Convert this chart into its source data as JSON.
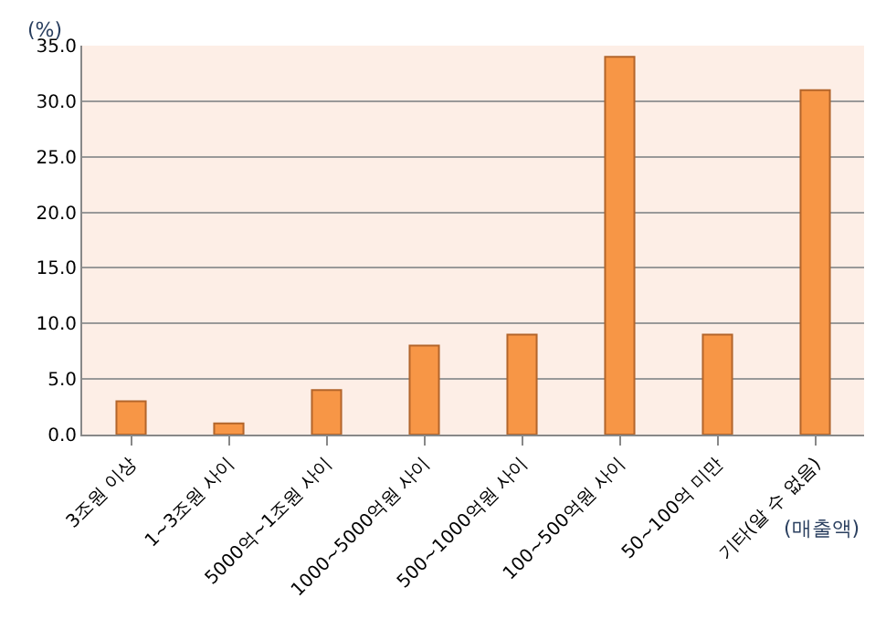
{
  "chart_data": {
    "type": "bar",
    "categories": [
      "3조원 이상",
      "1~3조원 사이",
      "5000억~1조원 사이",
      "1000~5000억원 사이",
      "500~1000억원 사이",
      "100~500억원 사이",
      "50~100억 미만",
      "기타(알 수 없음)"
    ],
    "values": [
      3.0,
      1.0,
      4.0,
      8.0,
      9.0,
      34.0,
      9.0,
      31.0
    ],
    "color": "#f79646",
    "ylabel": "(%)",
    "xlabel": "(매출액)",
    "ylim": [
      0,
      35
    ],
    "yticks": [
      {
        "value": 0,
        "label": "0.0"
      },
      {
        "value": 5,
        "label": "5.0"
      },
      {
        "value": 10,
        "label": "10.0"
      },
      {
        "value": 15,
        "label": "15.0"
      },
      {
        "value": 20,
        "label": "20.0"
      },
      {
        "value": 25,
        "label": "25.0"
      },
      {
        "value": 30,
        "label": "30.0"
      },
      {
        "value": 35,
        "label": "35.0"
      }
    ],
    "grid": "y"
  }
}
